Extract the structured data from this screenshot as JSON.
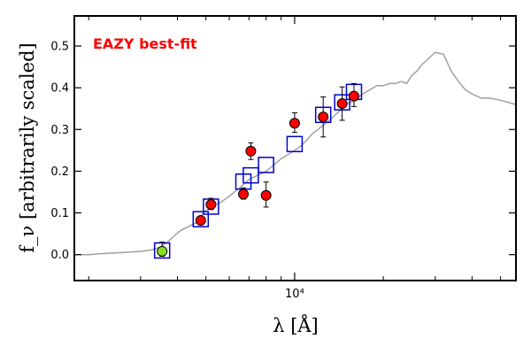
{
  "chart_data": {
    "type": "scatter",
    "annotation": "EAZY best-fit",
    "annotation_color": "#ff0000",
    "xlabel": "λ [Å]",
    "ylabel": "f_ν [arbitrarily scaled]",
    "xscale": "log",
    "xlim": [
      1800,
      56000
    ],
    "ylim": [
      -0.06,
      0.57
    ],
    "x_tick_labels": [
      {
        "value": 10000,
        "label": "10⁴"
      }
    ],
    "y_ticks": [
      0.0,
      0.1,
      0.2,
      0.3,
      0.4,
      0.5
    ],
    "y_tick_labels": [
      "0.0",
      "0.1",
      "0.2",
      "0.3",
      "0.4",
      "0.5"
    ],
    "grid": false,
    "colors": {
      "template": "#a0a0a0",
      "model_box": "#0000cc",
      "detection": "#ff0000",
      "low_point": "#88dd22"
    },
    "template_sed": {
      "x": [
        1800,
        2000,
        2300,
        2600,
        2900,
        3100,
        3300,
        3500,
        3700,
        3900,
        4100,
        4300,
        4500,
        4700,
        4900,
        5200,
        5600,
        6000,
        6500,
        7000,
        7500,
        8000,
        8500,
        9000,
        9500,
        10000,
        10500,
        11000,
        11500,
        12000,
        13000,
        14000,
        15000,
        16000,
        17000,
        18000,
        19000,
        20000,
        21000,
        22000,
        23000,
        24000,
        25000,
        26000,
        27000,
        28000,
        30000,
        32000,
        34000,
        36000,
        38000,
        40000,
        43000,
        46000,
        50000,
        53000,
        56000
      ],
      "y": [
        0.0,
        0.0,
        0.003,
        0.005,
        0.007,
        0.009,
        0.012,
        0.018,
        0.03,
        0.045,
        0.058,
        0.065,
        0.072,
        0.078,
        0.1,
        0.115,
        0.125,
        0.14,
        0.16,
        0.18,
        0.19,
        0.2,
        0.215,
        0.23,
        0.24,
        0.25,
        0.26,
        0.275,
        0.29,
        0.3,
        0.32,
        0.34,
        0.36,
        0.37,
        0.385,
        0.395,
        0.405,
        0.405,
        0.41,
        0.41,
        0.415,
        0.41,
        0.43,
        0.44,
        0.455,
        0.465,
        0.485,
        0.48,
        0.44,
        0.415,
        0.395,
        0.385,
        0.375,
        0.375,
        0.37,
        0.365,
        0.36
      ]
    },
    "model_photometry": {
      "x": [
        3550,
        4800,
        5200,
        6700,
        7100,
        8000,
        10000,
        12500,
        14500,
        15900
      ],
      "y": [
        0.01,
        0.085,
        0.115,
        0.175,
        0.19,
        0.215,
        0.265,
        0.335,
        0.365,
        0.39
      ]
    },
    "observed_photometry": {
      "x": [
        3550,
        4800,
        5200,
        6700,
        7100,
        8000,
        10000,
        12500,
        14500,
        15900
      ],
      "y": [
        0.008,
        0.082,
        0.12,
        0.145,
        0.248,
        0.142,
        0.315,
        0.33,
        0.362,
        0.38
      ],
      "err_low": [
        0.012,
        0.006,
        0.012,
        0.012,
        0.02,
        0.028,
        0.022,
        0.048,
        0.04,
        0.025
      ],
      "err_high": [
        0.022,
        0.008,
        0.015,
        0.015,
        0.02,
        0.032,
        0.025,
        0.048,
        0.04,
        0.03
      ]
    }
  }
}
